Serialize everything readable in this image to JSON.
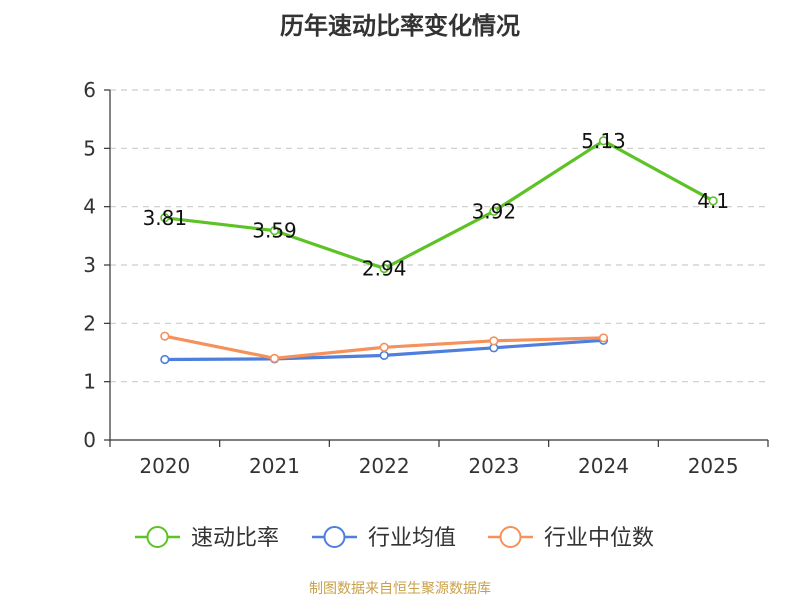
{
  "chart_data": {
    "type": "line",
    "title": "历年速动比率变化情况",
    "categories": [
      "2020",
      "2021",
      "2022",
      "2023",
      "2024",
      "2025"
    ],
    "ylim": [
      0,
      6
    ],
    "yticks": [
      0,
      1,
      2,
      3,
      4,
      5,
      6
    ],
    "grid": true,
    "legend_position": "bottom",
    "series": [
      {
        "name": "速动比率",
        "color": "#5dc226",
        "values": [
          3.81,
          3.59,
          2.94,
          3.92,
          5.13,
          4.1
        ],
        "labels": [
          "3.81",
          "3.59",
          "2.94",
          "3.92",
          "5.13",
          "4.1"
        ],
        "show_labels": true
      },
      {
        "name": "行业均值",
        "color": "#4e7fdc",
        "values": [
          1.38,
          1.39,
          1.45,
          1.58,
          1.71,
          null
        ],
        "show_labels": false
      },
      {
        "name": "行业中位数",
        "color": "#f5915a",
        "values": [
          1.78,
          1.4,
          1.59,
          1.7,
          1.75,
          null
        ],
        "show_labels": false
      }
    ]
  },
  "footer": {
    "source": "制图数据来自恒生聚源数据库"
  }
}
